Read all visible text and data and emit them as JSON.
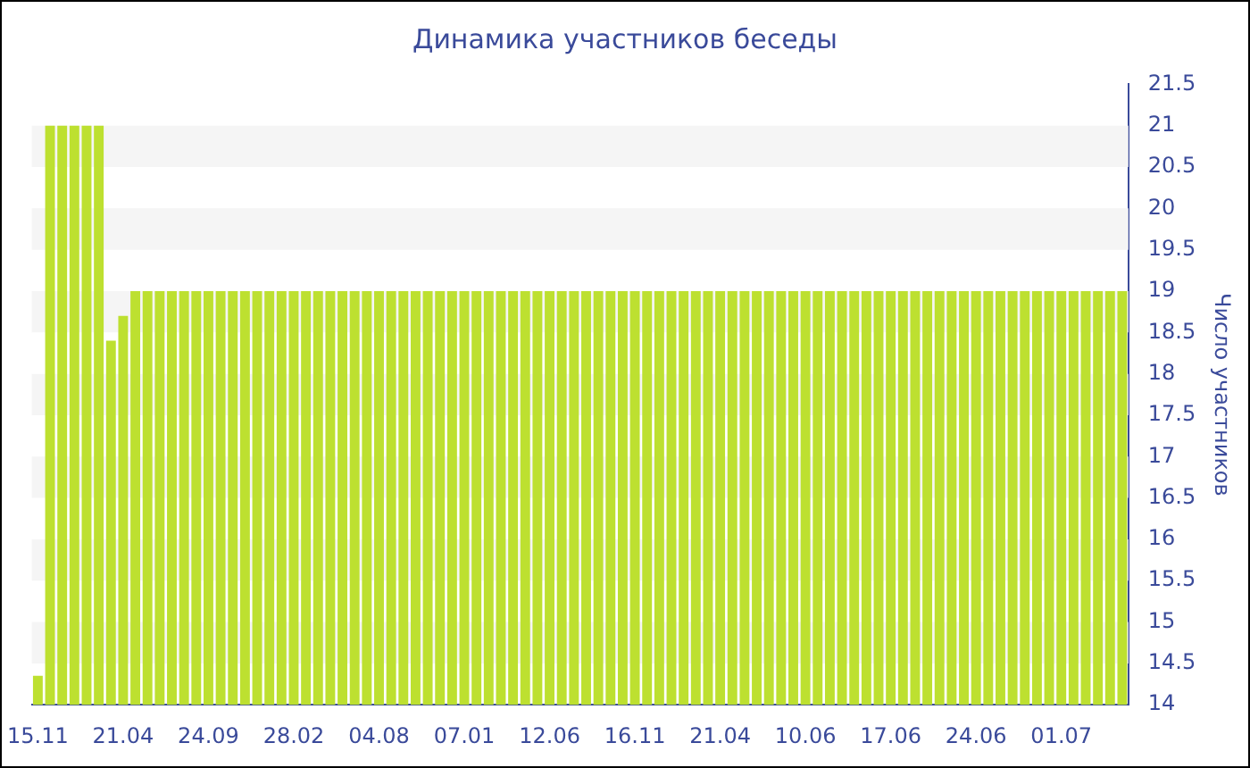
{
  "chart_data": {
    "type": "bar",
    "title": "Динамика участников беседы",
    "ylabel": "Число участников",
    "categories": [
      "15.11",
      null,
      null,
      null,
      null,
      null,
      null,
      "21.04",
      null,
      null,
      null,
      null,
      null,
      null,
      "24.09",
      null,
      null,
      null,
      null,
      null,
      null,
      "28.02",
      null,
      null,
      null,
      null,
      null,
      null,
      "04.08",
      null,
      null,
      null,
      null,
      null,
      null,
      "07.01",
      null,
      null,
      null,
      null,
      null,
      null,
      "12.06",
      null,
      null,
      null,
      null,
      null,
      null,
      "16.11",
      null,
      null,
      null,
      null,
      null,
      null,
      "21.04",
      null,
      null,
      null,
      null,
      null,
      null,
      "10.06",
      null,
      null,
      null,
      null,
      null,
      null,
      "17.06",
      null,
      null,
      null,
      null,
      null,
      null,
      "24.06",
      null,
      null,
      null,
      null,
      null,
      null,
      "01.07",
      null,
      null,
      null,
      null,
      null
    ],
    "values": [
      14.35,
      21,
      21,
      21,
      21,
      21,
      18.4,
      18.7,
      19,
      19,
      19,
      19,
      19,
      19,
      19,
      19,
      19,
      19,
      19,
      19,
      19,
      19,
      19,
      19,
      19,
      19,
      19,
      19,
      19,
      19,
      19,
      19,
      19,
      19,
      19,
      19,
      19,
      19,
      19,
      19,
      19,
      19,
      19,
      19,
      19,
      19,
      19,
      19,
      19,
      19,
      19,
      19,
      19,
      19,
      19,
      19,
      19,
      19,
      19,
      19,
      19,
      19,
      19,
      19,
      19,
      19,
      19,
      19,
      19,
      19,
      19,
      19,
      19,
      19,
      19,
      19,
      19,
      19,
      19,
      19,
      19,
      19,
      19,
      19,
      19,
      19,
      19,
      19,
      19,
      19
    ],
    "color": "#bde030",
    "ylim": [
      14,
      21.5
    ],
    "yticks": [
      14,
      14.5,
      15,
      15.5,
      16,
      16.5,
      17,
      17.5,
      18,
      18.5,
      19,
      19.5,
      20,
      20.5,
      21,
      21.5
    ]
  }
}
